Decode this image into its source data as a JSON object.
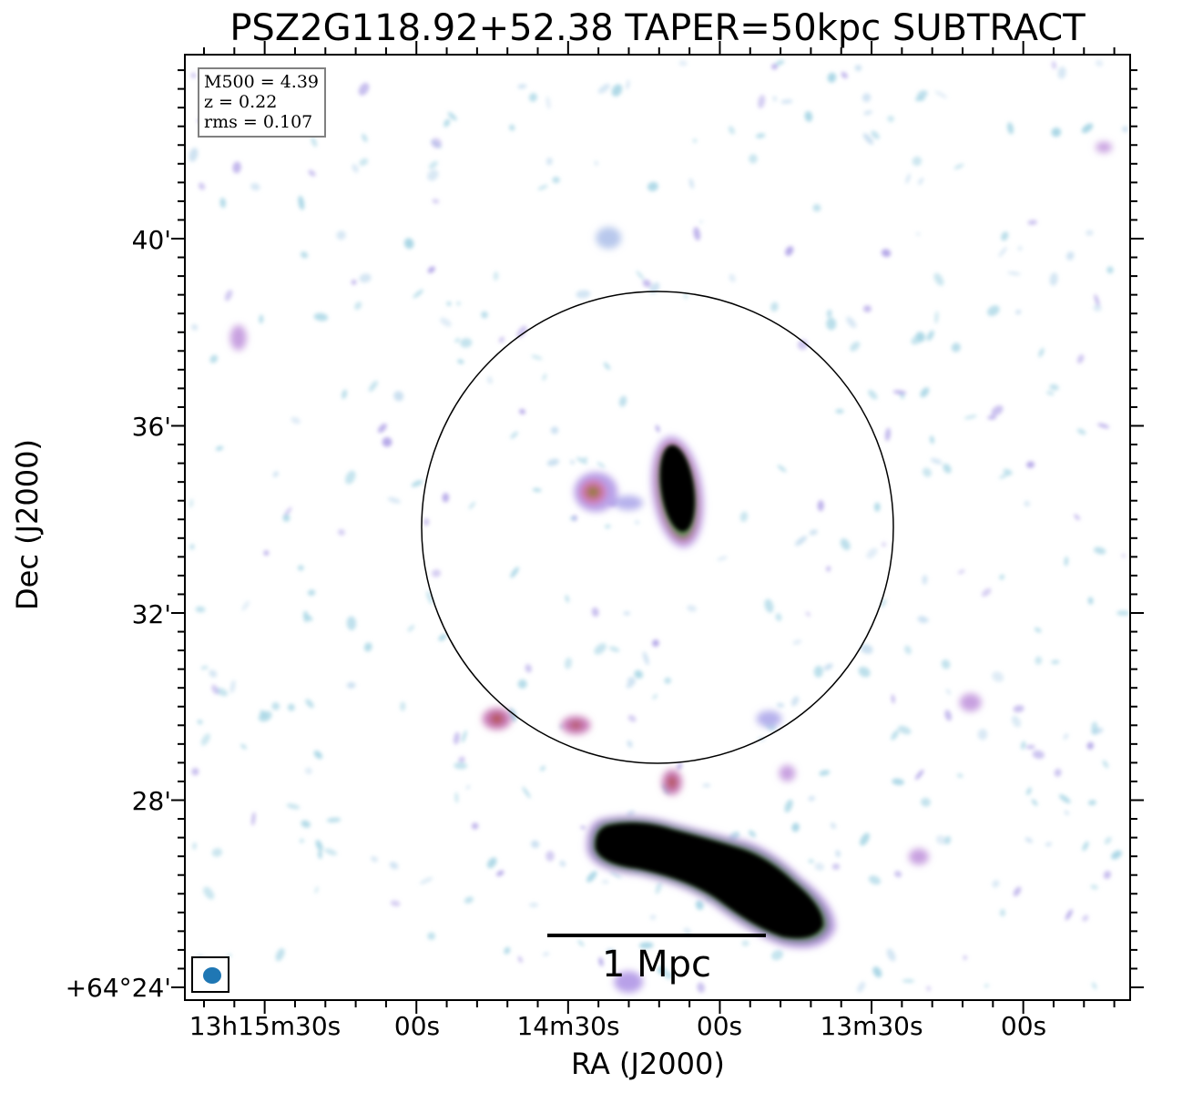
{
  "title": "PSZ2G118.92+52.38 TAPER=50kpc SUBTRACT",
  "info_box": {
    "lines": [
      "M500 = 4.39",
      "z = 0.22",
      "rms = 0.107"
    ]
  },
  "axes": {
    "x_title": "RA (J2000)",
    "y_title": "Dec (J2000)",
    "x_ticks": [
      "13h15m30s",
      "00s",
      "14m30s",
      "00s",
      "13m30s",
      "00s"
    ],
    "y_ticks": [
      "40'",
      "36'",
      "32'",
      "28'",
      "+64°24'"
    ]
  },
  "scale_bar": {
    "label": "1 Mpc"
  },
  "colors": {
    "faint_emission": "#a9d6e5",
    "low_emission": "#b5a8e8",
    "mid_emission": "#c77dba",
    "high_emission": "#8a6a3a",
    "saturated": "#000000",
    "beam": "#1f77b4",
    "info_box_border": "#808080"
  }
}
